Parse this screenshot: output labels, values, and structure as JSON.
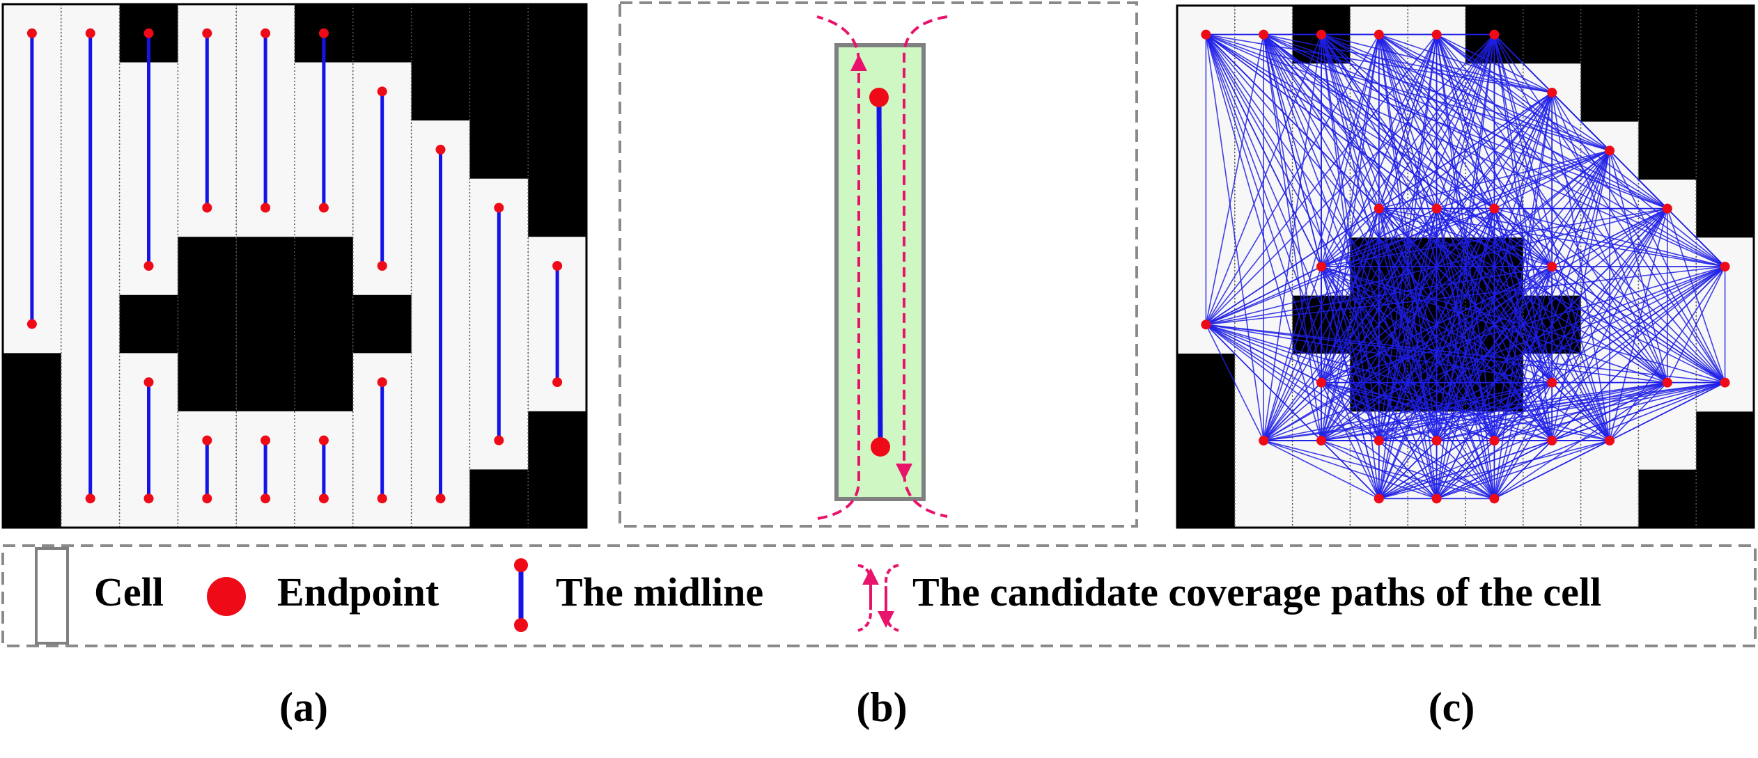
{
  "legend": {
    "cell": "Cell",
    "endpoint": "Endpoint",
    "midline": "The midline",
    "candidate_paths": "The candidate coverage paths of the cell"
  },
  "captions": {
    "a": "(a)",
    "b": "(b)",
    "c": "(c)"
  },
  "colors": {
    "obstacle": "#000000",
    "free_space": "#f7f7f7",
    "midline": "#1414e6",
    "endpoint": "#ee0a17",
    "candidate_path": "#e8136b",
    "cell_fill": "#cff7c4",
    "cell_border": "#808080",
    "graph_edge": "#1e1ee6",
    "dashed_border": "#8a8a8a"
  },
  "grid": {
    "columns": 10,
    "rows": 9,
    "column_free_rows": [
      [
        0,
        5
      ],
      [
        0,
        8
      ],
      [
        1,
        8
      ],
      [
        0,
        8
      ],
      [
        0,
        8
      ],
      [
        1,
        8
      ],
      [
        1,
        8
      ],
      [
        2,
        8
      ],
      [
        3,
        7
      ],
      [
        4,
        6
      ]
    ],
    "obstacle_columns": [
      3,
      4,
      5
    ],
    "obstacle_rows": [
      4,
      6
    ],
    "obstacle_side_columns": [
      2,
      6
    ],
    "obstacle_side_rows": [
      5,
      5
    ]
  }
}
